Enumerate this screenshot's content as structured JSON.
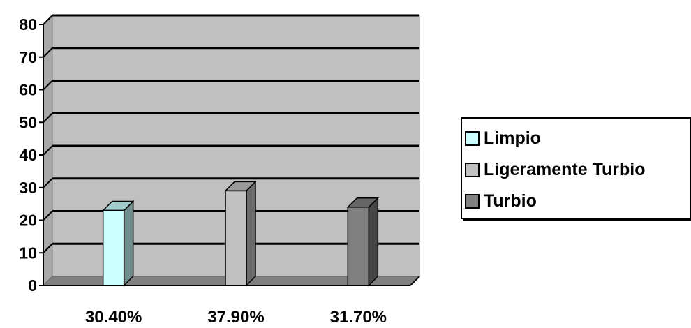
{
  "chart_data": {
    "type": "bar",
    "categories": [
      "30.40%",
      "37.90%",
      "31.70%"
    ],
    "series": [
      {
        "name": "Limpio",
        "values": [
          23,
          0,
          0
        ],
        "color": "#ccffff"
      },
      {
        "name": "Ligeramente Turbio",
        "values": [
          0,
          29,
          0
        ],
        "color": "#c0c0c0"
      },
      {
        "name": "Turbio",
        "values": [
          0,
          0,
          24
        ],
        "color": "#808080"
      }
    ],
    "y_ticks": [
      "0",
      "10",
      "20",
      "30",
      "40",
      "50",
      "60",
      "70",
      "80"
    ],
    "ylim": [
      0,
      80
    ],
    "grid": true,
    "legend_position": "right",
    "plot_background": "#c0c0c0"
  }
}
